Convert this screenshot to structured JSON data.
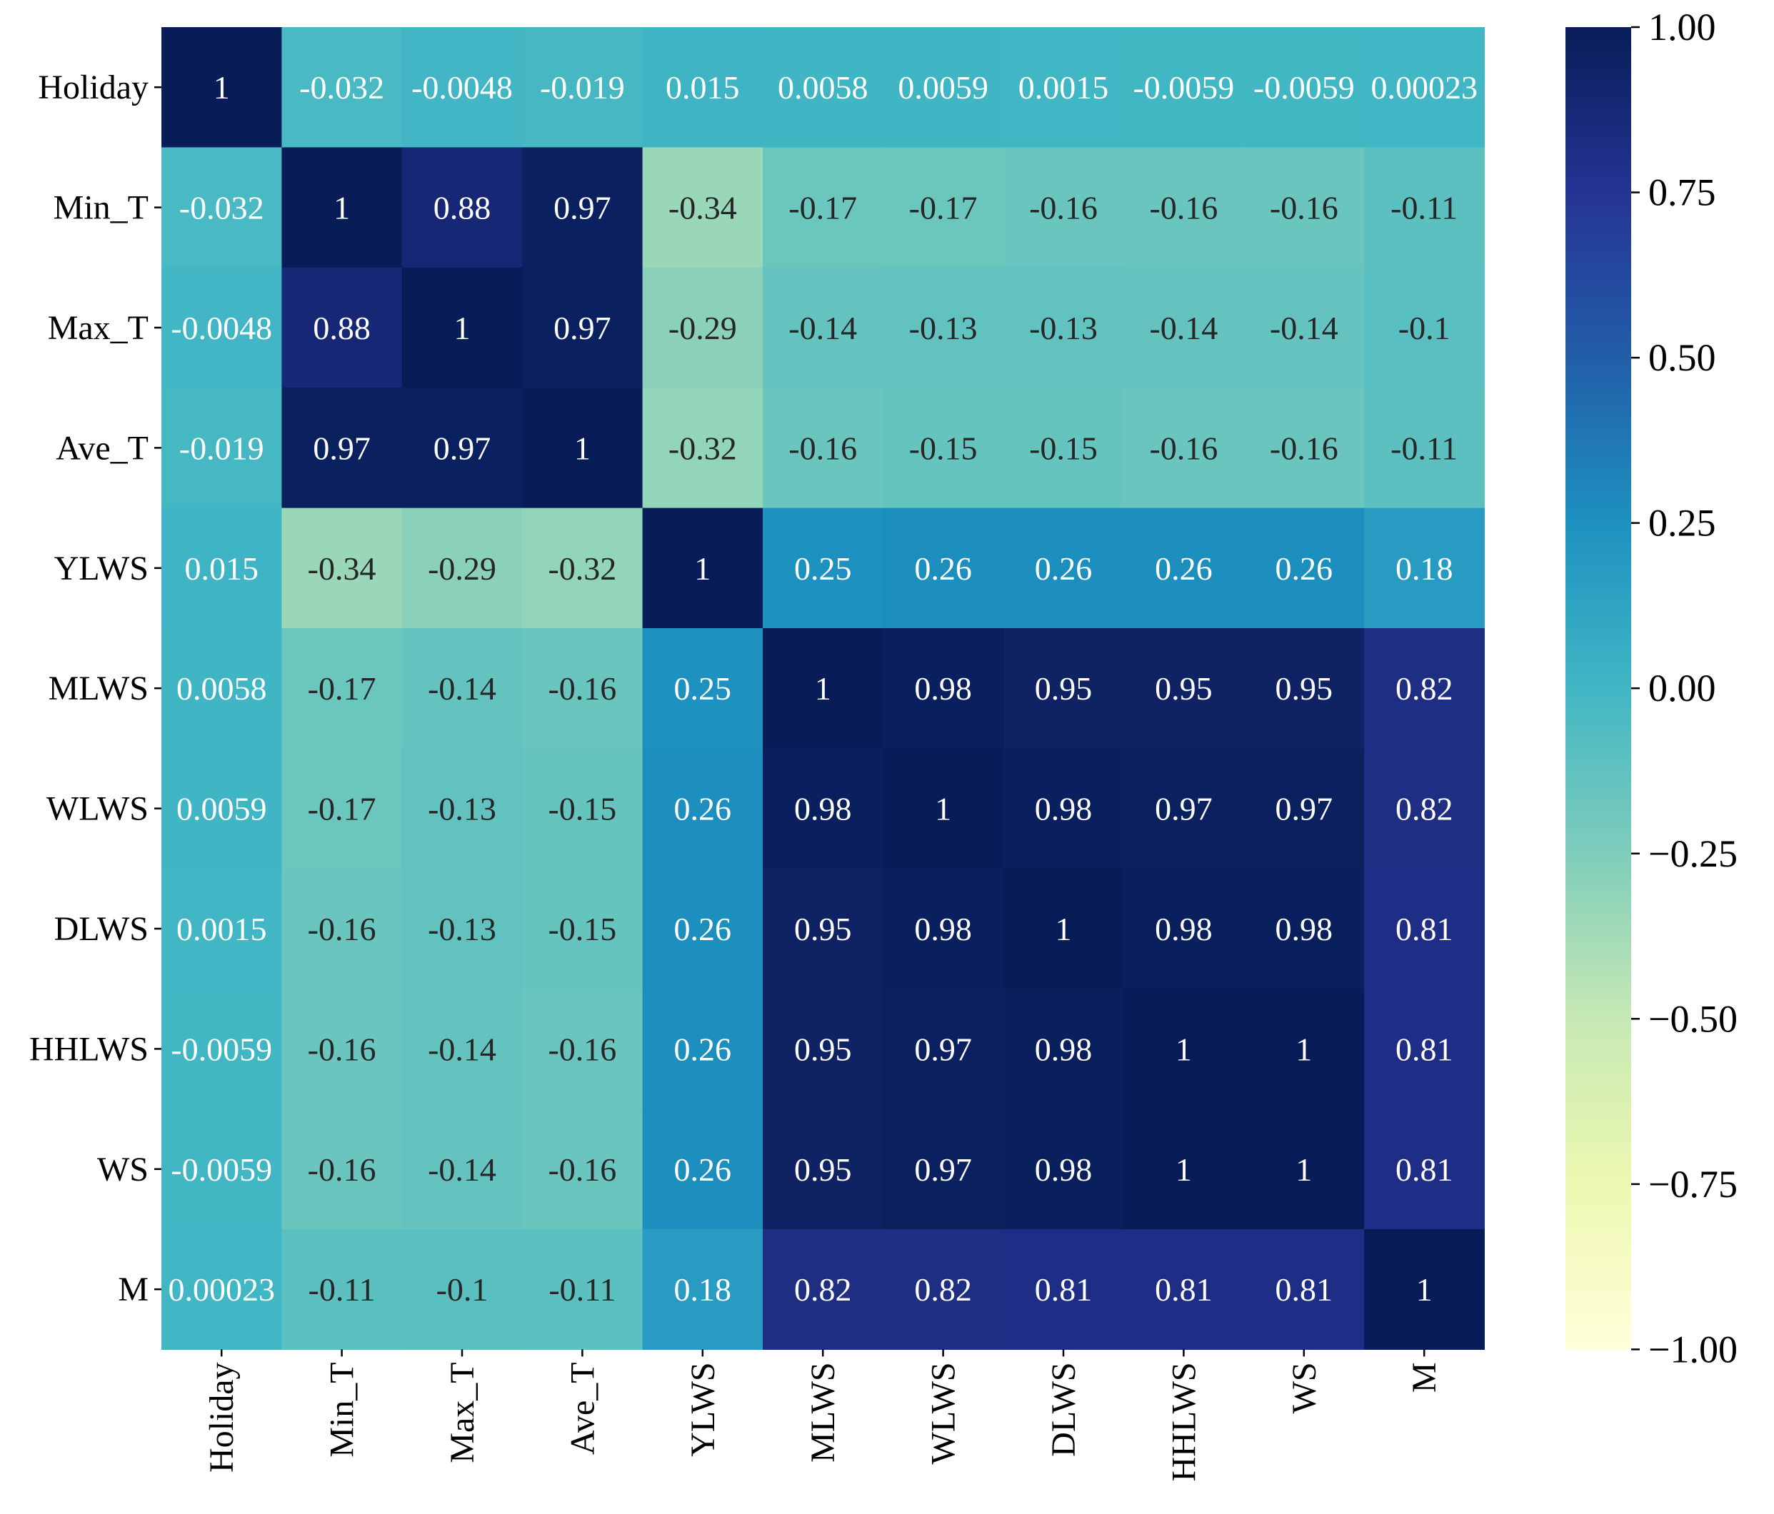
{
  "chart_data": {
    "type": "heatmap",
    "title": "",
    "xlabel": "",
    "ylabel": "",
    "labels": [
      "Holiday",
      "Min_T",
      "Max_T",
      "Ave_T",
      "YLWS",
      "MLWS",
      "WLWS",
      "DLWS",
      "HHLWS",
      "WS",
      "M"
    ],
    "matrix": [
      [
        1,
        -0.032,
        -0.0048,
        -0.019,
        0.015,
        0.0058,
        0.0059,
        0.0015,
        -0.0059,
        -0.0059,
        0.00023
      ],
      [
        -0.032,
        1,
        0.88,
        0.97,
        -0.34,
        -0.17,
        -0.17,
        -0.16,
        -0.16,
        -0.16,
        -0.11
      ],
      [
        -0.0048,
        0.88,
        1,
        0.97,
        -0.29,
        -0.14,
        -0.13,
        -0.13,
        -0.14,
        -0.14,
        -0.1
      ],
      [
        -0.019,
        0.97,
        0.97,
        1,
        -0.32,
        -0.16,
        -0.15,
        -0.15,
        -0.16,
        -0.16,
        -0.11
      ],
      [
        0.015,
        -0.34,
        -0.29,
        -0.32,
        1,
        0.25,
        0.26,
        0.26,
        0.26,
        0.26,
        0.18
      ],
      [
        0.0058,
        -0.17,
        -0.14,
        -0.16,
        0.25,
        1,
        0.98,
        0.95,
        0.95,
        0.95,
        0.82
      ],
      [
        0.0059,
        -0.17,
        -0.13,
        -0.15,
        0.26,
        0.98,
        1,
        0.98,
        0.97,
        0.97,
        0.82
      ],
      [
        0.0015,
        -0.16,
        -0.13,
        -0.15,
        0.26,
        0.95,
        0.98,
        1,
        0.98,
        0.98,
        0.81
      ],
      [
        -0.0059,
        -0.16,
        -0.14,
        -0.16,
        0.26,
        0.95,
        0.97,
        0.98,
        1,
        1,
        0.81
      ],
      [
        -0.0059,
        -0.16,
        -0.14,
        -0.16,
        0.26,
        0.95,
        0.97,
        0.98,
        1,
        1,
        0.81
      ],
      [
        0.00023,
        -0.11,
        -0.1,
        -0.11,
        0.18,
        0.82,
        0.82,
        0.81,
        0.81,
        0.81,
        1
      ]
    ],
    "colorbar": {
      "colormap": "YlGnBu",
      "range": [
        -1.0,
        1.0
      ],
      "ticks": [
        "1.00",
        "0.75",
        "0.50",
        "0.25",
        "0.00",
        "−0.25",
        "−0.50",
        "−0.75",
        "−1.00"
      ],
      "tick_values": [
        1.0,
        0.75,
        0.5,
        0.25,
        0.0,
        -0.25,
        -0.5,
        -0.75,
        -1.0
      ]
    }
  }
}
